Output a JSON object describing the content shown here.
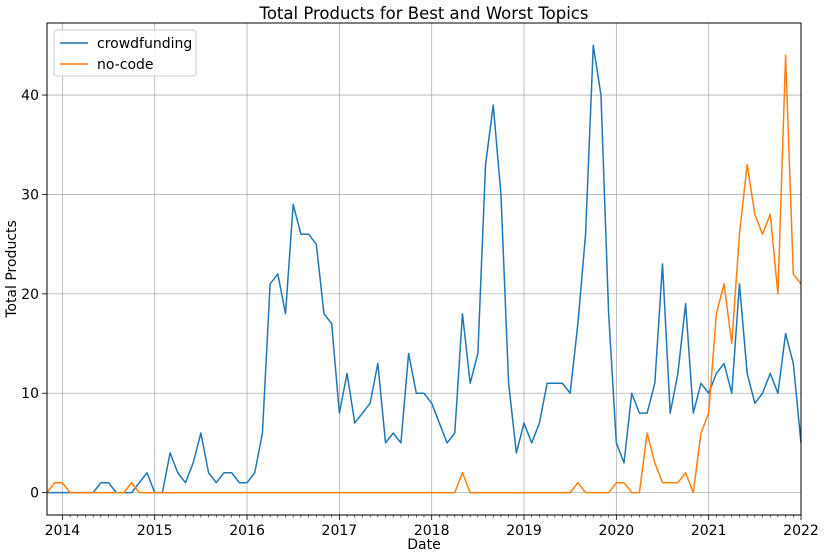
{
  "chart_data": {
    "type": "line",
    "title": "Total Products for Best and Worst Topics",
    "xlabel": "Date",
    "ylabel": "Total Products",
    "xlim": [
      "2013-11",
      "2022-01"
    ],
    "ylim": [
      -2.25,
      47.25
    ],
    "x_ticks": [
      "2014",
      "2015",
      "2016",
      "2017",
      "2018",
      "2019",
      "2020",
      "2021",
      "2022"
    ],
    "y_ticks": [
      0,
      10,
      20,
      30,
      40
    ],
    "grid": true,
    "legend_position": "upper left",
    "series": [
      {
        "name": "crowdfunding",
        "color": "#1f77b4",
        "points": [
          [
            "2013-11",
            0
          ],
          [
            "2013-12",
            0
          ],
          [
            "2014-01",
            0
          ],
          [
            "2014-02",
            0
          ],
          [
            "2014-03",
            0
          ],
          [
            "2014-04",
            0
          ],
          [
            "2014-05",
            0
          ],
          [
            "2014-06",
            1
          ],
          [
            "2014-07",
            1
          ],
          [
            "2014-08",
            0
          ],
          [
            "2014-09",
            0
          ],
          [
            "2014-10",
            0
          ],
          [
            "2014-11",
            1
          ],
          [
            "2014-12",
            2
          ],
          [
            "2015-01",
            0
          ],
          [
            "2015-02",
            0
          ],
          [
            "2015-03",
            4
          ],
          [
            "2015-04",
            2
          ],
          [
            "2015-05",
            1
          ],
          [
            "2015-06",
            3
          ],
          [
            "2015-07",
            6
          ],
          [
            "2015-08",
            2
          ],
          [
            "2015-09",
            1
          ],
          [
            "2015-10",
            2
          ],
          [
            "2015-11",
            2
          ],
          [
            "2015-12",
            1
          ],
          [
            "2016-01",
            1
          ],
          [
            "2016-02",
            2
          ],
          [
            "2016-03",
            6
          ],
          [
            "2016-04",
            21
          ],
          [
            "2016-05",
            22
          ],
          [
            "2016-06",
            18
          ],
          [
            "2016-07",
            29
          ],
          [
            "2016-08",
            26
          ],
          [
            "2016-09",
            26
          ],
          [
            "2016-10",
            25
          ],
          [
            "2016-11",
            18
          ],
          [
            "2016-12",
            17
          ],
          [
            "2017-01",
            8
          ],
          [
            "2017-02",
            12
          ],
          [
            "2017-03",
            7
          ],
          [
            "2017-04",
            8
          ],
          [
            "2017-05",
            9
          ],
          [
            "2017-06",
            13
          ],
          [
            "2017-07",
            5
          ],
          [
            "2017-08",
            6
          ],
          [
            "2017-09",
            5
          ],
          [
            "2017-10",
            14
          ],
          [
            "2017-11",
            10
          ],
          [
            "2017-12",
            10
          ],
          [
            "2018-01",
            9
          ],
          [
            "2018-02",
            7
          ],
          [
            "2018-03",
            5
          ],
          [
            "2018-04",
            6
          ],
          [
            "2018-05",
            18
          ],
          [
            "2018-06",
            11
          ],
          [
            "2018-07",
            14
          ],
          [
            "2018-08",
            33
          ],
          [
            "2018-09",
            39
          ],
          [
            "2018-10",
            30
          ],
          [
            "2018-11",
            11
          ],
          [
            "2018-12",
            4
          ],
          [
            "2019-01",
            7
          ],
          [
            "2019-02",
            5
          ],
          [
            "2019-03",
            7
          ],
          [
            "2019-04",
            11
          ],
          [
            "2019-05",
            11
          ],
          [
            "2019-06",
            11
          ],
          [
            "2019-07",
            10
          ],
          [
            "2019-08",
            17
          ],
          [
            "2019-09",
            26
          ],
          [
            "2019-10",
            45
          ],
          [
            "2019-11",
            40
          ],
          [
            "2019-12",
            18
          ],
          [
            "2020-01",
            5
          ],
          [
            "2020-02",
            3
          ],
          [
            "2020-03",
            10
          ],
          [
            "2020-04",
            8
          ],
          [
            "2020-05",
            8
          ],
          [
            "2020-06",
            11
          ],
          [
            "2020-07",
            23
          ],
          [
            "2020-08",
            8
          ],
          [
            "2020-09",
            12
          ],
          [
            "2020-10",
            19
          ],
          [
            "2020-11",
            8
          ],
          [
            "2020-12",
            11
          ],
          [
            "2021-01",
            10
          ],
          [
            "2021-02",
            12
          ],
          [
            "2021-03",
            13
          ],
          [
            "2021-04",
            10
          ],
          [
            "2021-05",
            21
          ],
          [
            "2021-06",
            12
          ],
          [
            "2021-07",
            9
          ],
          [
            "2021-08",
            10
          ],
          [
            "2021-09",
            12
          ],
          [
            "2021-10",
            10
          ],
          [
            "2021-11",
            16
          ],
          [
            "2021-12",
            13
          ],
          [
            "2022-01",
            5
          ]
        ]
      },
      {
        "name": "no-code",
        "color": "#ff7f0e",
        "points": [
          [
            "2013-11",
            0
          ],
          [
            "2013-12",
            1
          ],
          [
            "2014-01",
            1
          ],
          [
            "2014-02",
            0
          ],
          [
            "2014-03",
            0
          ],
          [
            "2014-04",
            0
          ],
          [
            "2014-05",
            0
          ],
          [
            "2014-06",
            0
          ],
          [
            "2014-07",
            0
          ],
          [
            "2014-08",
            0
          ],
          [
            "2014-09",
            0
          ],
          [
            "2014-10",
            1
          ],
          [
            "2014-11",
            0
          ],
          [
            "2014-12",
            0
          ],
          [
            "2015-01",
            0
          ],
          [
            "2015-02",
            0
          ],
          [
            "2015-03",
            0
          ],
          [
            "2015-04",
            0
          ],
          [
            "2015-05",
            0
          ],
          [
            "2015-06",
            0
          ],
          [
            "2015-07",
            0
          ],
          [
            "2015-08",
            0
          ],
          [
            "2015-09",
            0
          ],
          [
            "2015-10",
            0
          ],
          [
            "2015-11",
            0
          ],
          [
            "2015-12",
            0
          ],
          [
            "2016-01",
            0
          ],
          [
            "2016-02",
            0
          ],
          [
            "2016-03",
            0
          ],
          [
            "2016-04",
            0
          ],
          [
            "2016-05",
            0
          ],
          [
            "2016-06",
            0
          ],
          [
            "2016-07",
            0
          ],
          [
            "2016-08",
            0
          ],
          [
            "2016-09",
            0
          ],
          [
            "2016-10",
            0
          ],
          [
            "2016-11",
            0
          ],
          [
            "2016-12",
            0
          ],
          [
            "2017-01",
            0
          ],
          [
            "2017-02",
            0
          ],
          [
            "2017-03",
            0
          ],
          [
            "2017-04",
            0
          ],
          [
            "2017-05",
            0
          ],
          [
            "2017-06",
            0
          ],
          [
            "2017-07",
            0
          ],
          [
            "2017-08",
            0
          ],
          [
            "2017-09",
            0
          ],
          [
            "2017-10",
            0
          ],
          [
            "2017-11",
            0
          ],
          [
            "2017-12",
            0
          ],
          [
            "2018-01",
            0
          ],
          [
            "2018-02",
            0
          ],
          [
            "2018-03",
            0
          ],
          [
            "2018-04",
            0
          ],
          [
            "2018-05",
            2
          ],
          [
            "2018-06",
            0
          ],
          [
            "2018-07",
            0
          ],
          [
            "2018-08",
            0
          ],
          [
            "2018-09",
            0
          ],
          [
            "2018-10",
            0
          ],
          [
            "2018-11",
            0
          ],
          [
            "2018-12",
            0
          ],
          [
            "2019-01",
            0
          ],
          [
            "2019-02",
            0
          ],
          [
            "2019-03",
            0
          ],
          [
            "2019-04",
            0
          ],
          [
            "2019-05",
            0
          ],
          [
            "2019-06",
            0
          ],
          [
            "2019-07",
            0
          ],
          [
            "2019-08",
            1
          ],
          [
            "2019-09",
            0
          ],
          [
            "2019-10",
            0
          ],
          [
            "2019-11",
            0
          ],
          [
            "2019-12",
            0
          ],
          [
            "2020-01",
            1
          ],
          [
            "2020-02",
            1
          ],
          [
            "2020-03",
            0
          ],
          [
            "2020-04",
            0
          ],
          [
            "2020-05",
            6
          ],
          [
            "2020-06",
            3
          ],
          [
            "2020-07",
            1
          ],
          [
            "2020-08",
            1
          ],
          [
            "2020-09",
            1
          ],
          [
            "2020-10",
            2
          ],
          [
            "2020-11",
            0
          ],
          [
            "2020-12",
            6
          ],
          [
            "2021-01",
            8
          ],
          [
            "2021-02",
            18
          ],
          [
            "2021-03",
            21
          ],
          [
            "2021-04",
            15
          ],
          [
            "2021-05",
            26
          ],
          [
            "2021-06",
            33
          ],
          [
            "2021-07",
            28
          ],
          [
            "2021-08",
            26
          ],
          [
            "2021-09",
            28
          ],
          [
            "2021-10",
            20
          ],
          [
            "2021-11",
            44
          ],
          [
            "2021-12",
            22
          ],
          [
            "2022-01",
            21
          ]
        ]
      }
    ]
  }
}
